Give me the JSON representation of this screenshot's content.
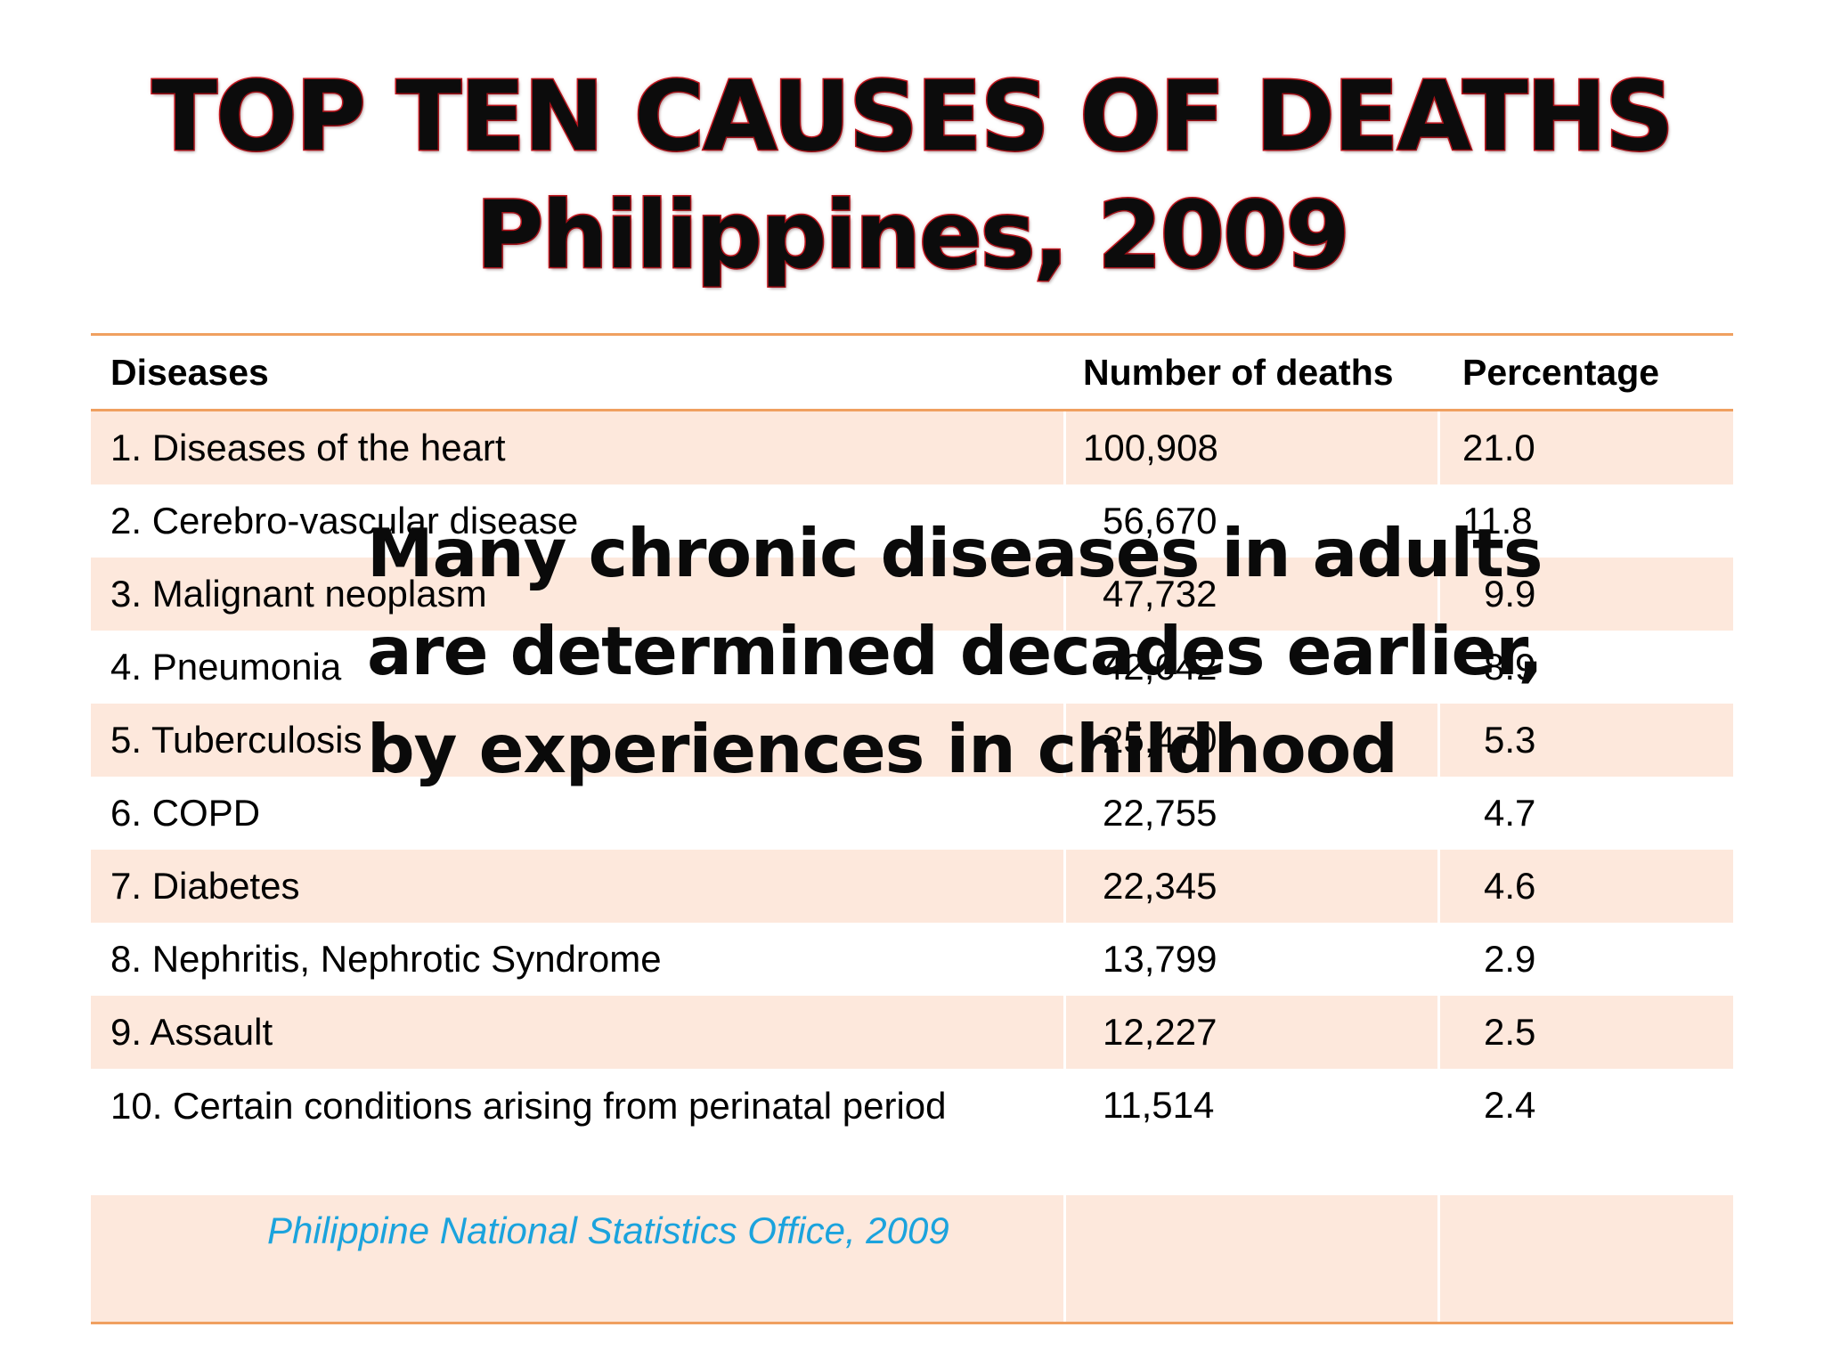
{
  "title": {
    "line1": "TOP TEN CAUSES OF DEATHS",
    "line2": "Philippines, 2009"
  },
  "table": {
    "headers": [
      "Diseases",
      "Number of deaths",
      "Percentage"
    ],
    "rows": [
      {
        "disease": "1.  Diseases of the heart",
        "deaths": "100,908",
        "percentage": "21.0"
      },
      {
        "disease": "2.  Cerebro-vascular disease",
        "deaths": "56,670",
        "percentage": "11.8"
      },
      {
        "disease": "3.  Malignant neoplasm",
        "deaths": "47,732",
        "percentage": "9.9"
      },
      {
        "disease": "4.  Pneumonia",
        "deaths": "42,642",
        "percentage": "8.9"
      },
      {
        "disease": "5.  Tuberculosis",
        "deaths": "25,470",
        "percentage": "5.3"
      },
      {
        "disease": "6.  COPD",
        "deaths": "22,755",
        "percentage": "4.7"
      },
      {
        "disease": "7.  Diabetes",
        "deaths": "22,345",
        "percentage": "4.6"
      },
      {
        "disease": "8.  Nephritis, Nephrotic Syndrome",
        "deaths": "13,799",
        "percentage": "2.9"
      },
      {
        "disease": "9.  Assault",
        "deaths": "12,227",
        "percentage": "2.5"
      },
      {
        "disease": "10. Certain conditions arising from perinatal period",
        "deaths": "11,514",
        "percentage": "2.4"
      }
    ],
    "source": "Philippine National Statistics Office, 2009"
  },
  "overlay": {
    "line1": "Many chronic diseases in adults",
    "line2": "are determined decades earlier,",
    "line3": "by experiences in childhood"
  },
  "colors": {
    "title_outline": "#c0161e",
    "band_fill": "#fde8dc",
    "rule": "#f0a060",
    "source_text": "#1ba3dd"
  }
}
